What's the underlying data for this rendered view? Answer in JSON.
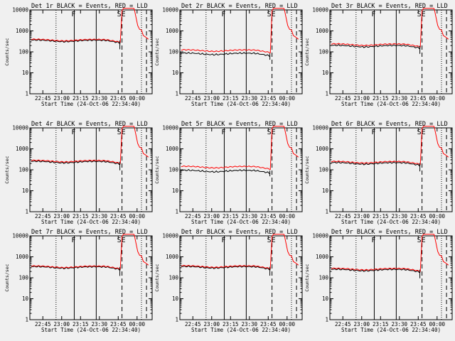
{
  "chart_data": {
    "type": "line",
    "y_scale": "log",
    "ylim": [
      1,
      10000
    ],
    "y_ticks": [
      "10000",
      "1000",
      "100",
      "10",
      "1"
    ],
    "ylabel": "Counts/sec",
    "xlabel": "Start Time (24-Oct-06 22:34:40)",
    "x_ticks": [
      "22:45",
      "23:00",
      "23:15",
      "23:30",
      "23:45",
      "00:00"
    ],
    "xlim": [
      "22:34:40",
      "00:12:00"
    ],
    "series_colors": {
      "black": "#000000",
      "red": "#ff0000"
    },
    "vertical_markers": [
      {
        "time": "22:55:30",
        "style": "dotted"
      },
      {
        "time": "23:10:00",
        "style": "solid",
        "label": "F"
      },
      {
        "time": "23:27:30",
        "style": "solid"
      },
      {
        "time": "23:48:00",
        "style": "dashed",
        "label": "SE"
      },
      {
        "time": "00:03:30",
        "style": "dotted"
      },
      {
        "time": "00:07:30",
        "style": "dashed"
      }
    ],
    "panels": [
      {
        "title": "Det 1r BLACK = Events, RED = LLD",
        "red_base": 380,
        "black_ratio": 0.92
      },
      {
        "title": "Det 2r BLACK = Events, RED = LLD",
        "red_base": 120,
        "black_ratio": 0.7
      },
      {
        "title": "Det 3r BLACK = Events, RED = LLD",
        "red_base": 230,
        "black_ratio": 0.85
      },
      {
        "title": "Det 4r BLACK = Events, RED = LLD",
        "red_base": 270,
        "black_ratio": 0.9
      },
      {
        "title": "Det 5r BLACK = Events, RED = LLD",
        "red_base": 140,
        "black_ratio": 0.65
      },
      {
        "title": "Det 6r BLACK = Events, RED = LLD",
        "red_base": 240,
        "black_ratio": 0.88
      },
      {
        "title": "Det 7r BLACK = Events, RED = LLD",
        "red_base": 350,
        "black_ratio": 0.93
      },
      {
        "title": "Det 8r BLACK = Events, RED = LLD",
        "red_base": 360,
        "black_ratio": 0.92
      },
      {
        "title": "Det 9r BLACK = Events, RED = LLD",
        "red_base": 270,
        "black_ratio": 0.9
      }
    ]
  }
}
